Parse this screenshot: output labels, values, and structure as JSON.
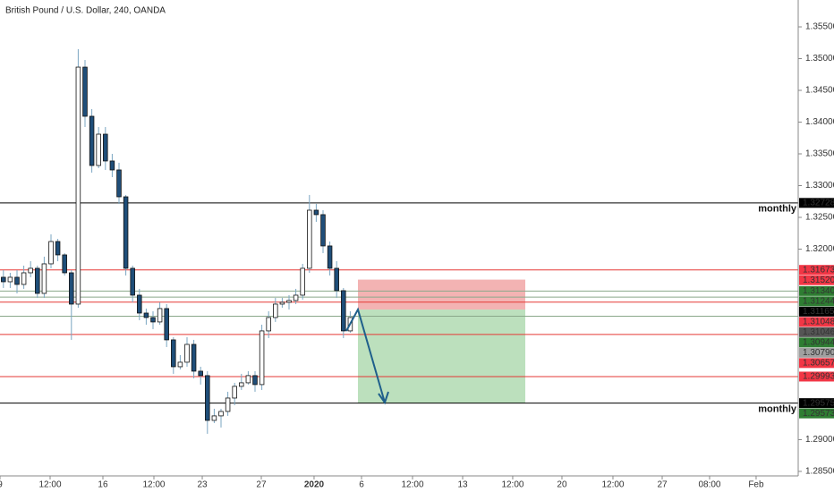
{
  "chart_data": {
    "type": "candlestick",
    "title": "British Pound / U.S. Dollar, 240, OANDA",
    "xlim": [
      -0.5,
      116.87
    ],
    "ylim": [
      1.28429,
      1.35923
    ],
    "xticks": [
      {
        "value": -0.5,
        "label": "9"
      },
      {
        "value": 6.87,
        "label": "12:00"
      },
      {
        "value": 14.63,
        "label": "16"
      },
      {
        "value": 22.13,
        "label": "12:00"
      },
      {
        "value": 29.24,
        "label": "23"
      },
      {
        "value": 37.92,
        "label": "27"
      },
      {
        "value": 45.68,
        "label": "2020"
      },
      {
        "value": 52.66,
        "label": "6"
      },
      {
        "value": 60.16,
        "label": "12:00"
      },
      {
        "value": 67.53,
        "label": "13"
      },
      {
        "value": 74.89,
        "label": "12:00"
      },
      {
        "value": 82.13,
        "label": "20"
      },
      {
        "value": 89.63,
        "label": "12:00"
      },
      {
        "value": 96.87,
        "label": "27"
      },
      {
        "value": 103.84,
        "label": "08:00"
      },
      {
        "value": 110.68,
        "label": "Feb"
      }
    ],
    "yticks": [
      {
        "value": 1.355,
        "label": "1.35500"
      },
      {
        "value": 1.35,
        "label": "1.35000"
      },
      {
        "value": 1.345,
        "label": "1.34500"
      },
      {
        "value": 1.34,
        "label": "1.34000"
      },
      {
        "value": 1.335,
        "label": "1.33500"
      },
      {
        "value": 1.33,
        "label": "1.33000"
      },
      {
        "value": 1.325,
        "label": "1.32500"
      },
      {
        "value": 1.32,
        "label": "1.32000"
      },
      {
        "value": 1.29,
        "label": "1.29000"
      },
      {
        "value": 1.285,
        "label": "1.28500"
      }
    ],
    "up_color": "#ffffff",
    "down_color": "#1f4e79",
    "outline_color": "#111111",
    "candles": [
      {
        "open": 1.31557,
        "high": 1.31669,
        "low": 1.31388,
        "close": 1.31486
      },
      {
        "open": 1.31486,
        "high": 1.31627,
        "low": 1.31388,
        "close": 1.31557
      },
      {
        "open": 1.31557,
        "high": 1.31669,
        "low": 1.31303,
        "close": 1.31444
      },
      {
        "open": 1.31444,
        "high": 1.3174,
        "low": 1.31374,
        "close": 1.31627
      },
      {
        "open": 1.31627,
        "high": 1.3181,
        "low": 1.31557,
        "close": 1.31698
      },
      {
        "open": 1.31698,
        "high": 1.3174,
        "low": 1.31233,
        "close": 1.31303
      },
      {
        "open": 1.31303,
        "high": 1.31881,
        "low": 1.31233,
        "close": 1.31768
      },
      {
        "open": 1.31768,
        "high": 1.32233,
        "low": 1.31698,
        "close": 1.3212
      },
      {
        "open": 1.3212,
        "high": 1.32162,
        "low": 1.3181,
        "close": 1.31909
      },
      {
        "open": 1.31909,
        "high": 1.31937,
        "low": 1.31585,
        "close": 1.31627
      },
      {
        "open": 1.31627,
        "high": 1.31669,
        "low": 1.30571,
        "close": 1.31134
      },
      {
        "open": 1.31134,
        "high": 1.35148,
        "low": 1.31078,
        "close": 1.34866
      },
      {
        "open": 1.34866,
        "high": 1.34979,
        "low": 1.33923,
        "close": 1.34092
      },
      {
        "open": 1.34092,
        "high": 1.34205,
        "low": 1.33205,
        "close": 1.33317
      },
      {
        "open": 1.33317,
        "high": 1.33923,
        "low": 1.33275,
        "close": 1.3381
      },
      {
        "open": 1.3381,
        "high": 1.33923,
        "low": 1.33247,
        "close": 1.33388
      },
      {
        "open": 1.33388,
        "high": 1.335,
        "low": 1.33134,
        "close": 1.33247
      },
      {
        "open": 1.33247,
        "high": 1.3336,
        "low": 1.32712,
        "close": 1.32824
      },
      {
        "open": 1.32824,
        "high": 1.32853,
        "low": 1.31585,
        "close": 1.31698
      },
      {
        "open": 1.31698,
        "high": 1.3174,
        "low": 1.31162,
        "close": 1.31275
      },
      {
        "open": 1.31275,
        "high": 1.31374,
        "low": 1.30881,
        "close": 1.30993
      },
      {
        "open": 1.30993,
        "high": 1.31064,
        "low": 1.3081,
        "close": 1.30923
      },
      {
        "open": 1.30923,
        "high": 1.31022,
        "low": 1.3074,
        "close": 1.30853
      },
      {
        "open": 1.30853,
        "high": 1.31162,
        "low": 1.3081,
        "close": 1.31064
      },
      {
        "open": 1.31064,
        "high": 1.31134,
        "low": 1.30458,
        "close": 1.30571
      },
      {
        "open": 1.30571,
        "high": 1.30613,
        "low": 1.30036,
        "close": 1.30148
      },
      {
        "open": 1.30148,
        "high": 1.30331,
        "low": 1.30106,
        "close": 1.30219
      },
      {
        "open": 1.30219,
        "high": 1.30613,
        "low": 1.30148,
        "close": 1.305
      },
      {
        "open": 1.305,
        "high": 1.30571,
        "low": 1.29965,
        "close": 1.30078
      },
      {
        "open": 1.30078,
        "high": 1.30148,
        "low": 1.29867,
        "close": 1.30008
      },
      {
        "open": 1.30008,
        "high": 1.30078,
        "low": 1.29092,
        "close": 1.29303
      },
      {
        "open": 1.29303,
        "high": 1.29486,
        "low": 1.29261,
        "close": 1.29374
      },
      {
        "open": 1.29374,
        "high": 1.29486,
        "low": 1.29191,
        "close": 1.29444
      },
      {
        "open": 1.29444,
        "high": 1.29754,
        "low": 1.29374,
        "close": 1.29655
      },
      {
        "open": 1.29655,
        "high": 1.29895,
        "low": 1.29543,
        "close": 1.29839
      },
      {
        "open": 1.29839,
        "high": 1.30036,
        "low": 1.29782,
        "close": 1.29895
      },
      {
        "open": 1.29895,
        "high": 1.30078,
        "low": 1.29867,
        "close": 1.30008
      },
      {
        "open": 1.30008,
        "high": 1.30078,
        "low": 1.29754,
        "close": 1.29867
      },
      {
        "open": 1.29867,
        "high": 1.3081,
        "low": 1.29782,
        "close": 1.30712
      },
      {
        "open": 1.30712,
        "high": 1.31022,
        "low": 1.30599,
        "close": 1.30923
      },
      {
        "open": 1.30923,
        "high": 1.31233,
        "low": 1.30853,
        "close": 1.31134
      },
      {
        "open": 1.31134,
        "high": 1.31233,
        "low": 1.31078,
        "close": 1.31162
      },
      {
        "open": 1.31162,
        "high": 1.31275,
        "low": 1.3105,
        "close": 1.31191
      },
      {
        "open": 1.31191,
        "high": 1.31374,
        "low": 1.31134,
        "close": 1.31275
      },
      {
        "open": 1.31275,
        "high": 1.31768,
        "low": 1.31205,
        "close": 1.31698
      },
      {
        "open": 1.31698,
        "high": 1.32853,
        "low": 1.31627,
        "close": 1.32613
      },
      {
        "open": 1.32613,
        "high": 1.32712,
        "low": 1.3243,
        "close": 1.32543
      },
      {
        "open": 1.32543,
        "high": 1.32613,
        "low": 1.31937,
        "close": 1.3205
      },
      {
        "open": 1.3205,
        "high": 1.3212,
        "low": 1.31585,
        "close": 1.31698
      },
      {
        "open": 1.31698,
        "high": 1.3181,
        "low": 1.31233,
        "close": 1.31346
      },
      {
        "open": 1.31346,
        "high": 1.31388,
        "low": 1.30599,
        "close": 1.30712
      },
      {
        "open": 1.30712,
        "high": 1.31022,
        "low": 1.30684,
        "close": 1.30923
      }
    ],
    "lines": [
      {
        "value": 1.32728,
        "color": "#000000"
      },
      {
        "value": 1.29575,
        "color": "#000000"
      },
      {
        "value": 1.31673,
        "color": "#e53935"
      },
      {
        "value": 1.31165,
        "color": "#e53935"
      },
      {
        "value": 1.30657,
        "color": "#e53935"
      },
      {
        "value": 1.29993,
        "color": "#e53935"
      },
      {
        "value": 1.3134,
        "color": "#8aa88a"
      },
      {
        "value": 1.31244,
        "color": "#8aa88a"
      },
      {
        "value": 1.30944,
        "color": "#8aa88a"
      }
    ],
    "position": {
      "stop": 1.3152,
      "entry": 1.31048,
      "target": 1.29573,
      "x_start": 52.13,
      "x_end": 76.74,
      "risk_color": "#ef9a9a",
      "reward_color": "#a5d6a7"
    },
    "price_labels": [
      {
        "value": 1.32728,
        "label": "1.32728",
        "color": "#000000"
      },
      {
        "value": 1.31673,
        "label": "1.31673",
        "color": "#f23645"
      },
      {
        "value": 1.3152,
        "label": "1.31520",
        "color": "#f23645"
      },
      {
        "value": 1.3134,
        "label": "1.31340",
        "color": "#2e7d32"
      },
      {
        "value": 1.31244,
        "label": "1.31244",
        "color": "#2e7d32"
      },
      {
        "value": 1.31165,
        "label": "1.31165",
        "color": "#000000"
      },
      {
        "value": 1.31048,
        "label": "1.31048",
        "color": "#f23645"
      },
      {
        "value": 1.31046,
        "label": "1.31046",
        "color": "#555555"
      },
      {
        "value": 1.30944,
        "label": "1.30944",
        "color": "#2e7d32"
      },
      {
        "value": 1.3079,
        "label": "1.30790",
        "color": "#a0a0a0"
      },
      {
        "value": 1.30657,
        "label": "1.30657",
        "color": "#f23645"
      },
      {
        "value": 1.29993,
        "label": "1.29993",
        "color": "#f23645"
      },
      {
        "value": 1.29575,
        "label": "1.29575",
        "color": "#000000"
      },
      {
        "value": 1.29573,
        "label": "1.29573",
        "color": "#2e7d32"
      }
    ],
    "annotations": [
      {
        "text": "monthly",
        "value": 1.32728
      },
      {
        "text": "monthly",
        "value": 1.29575
      }
    ]
  }
}
